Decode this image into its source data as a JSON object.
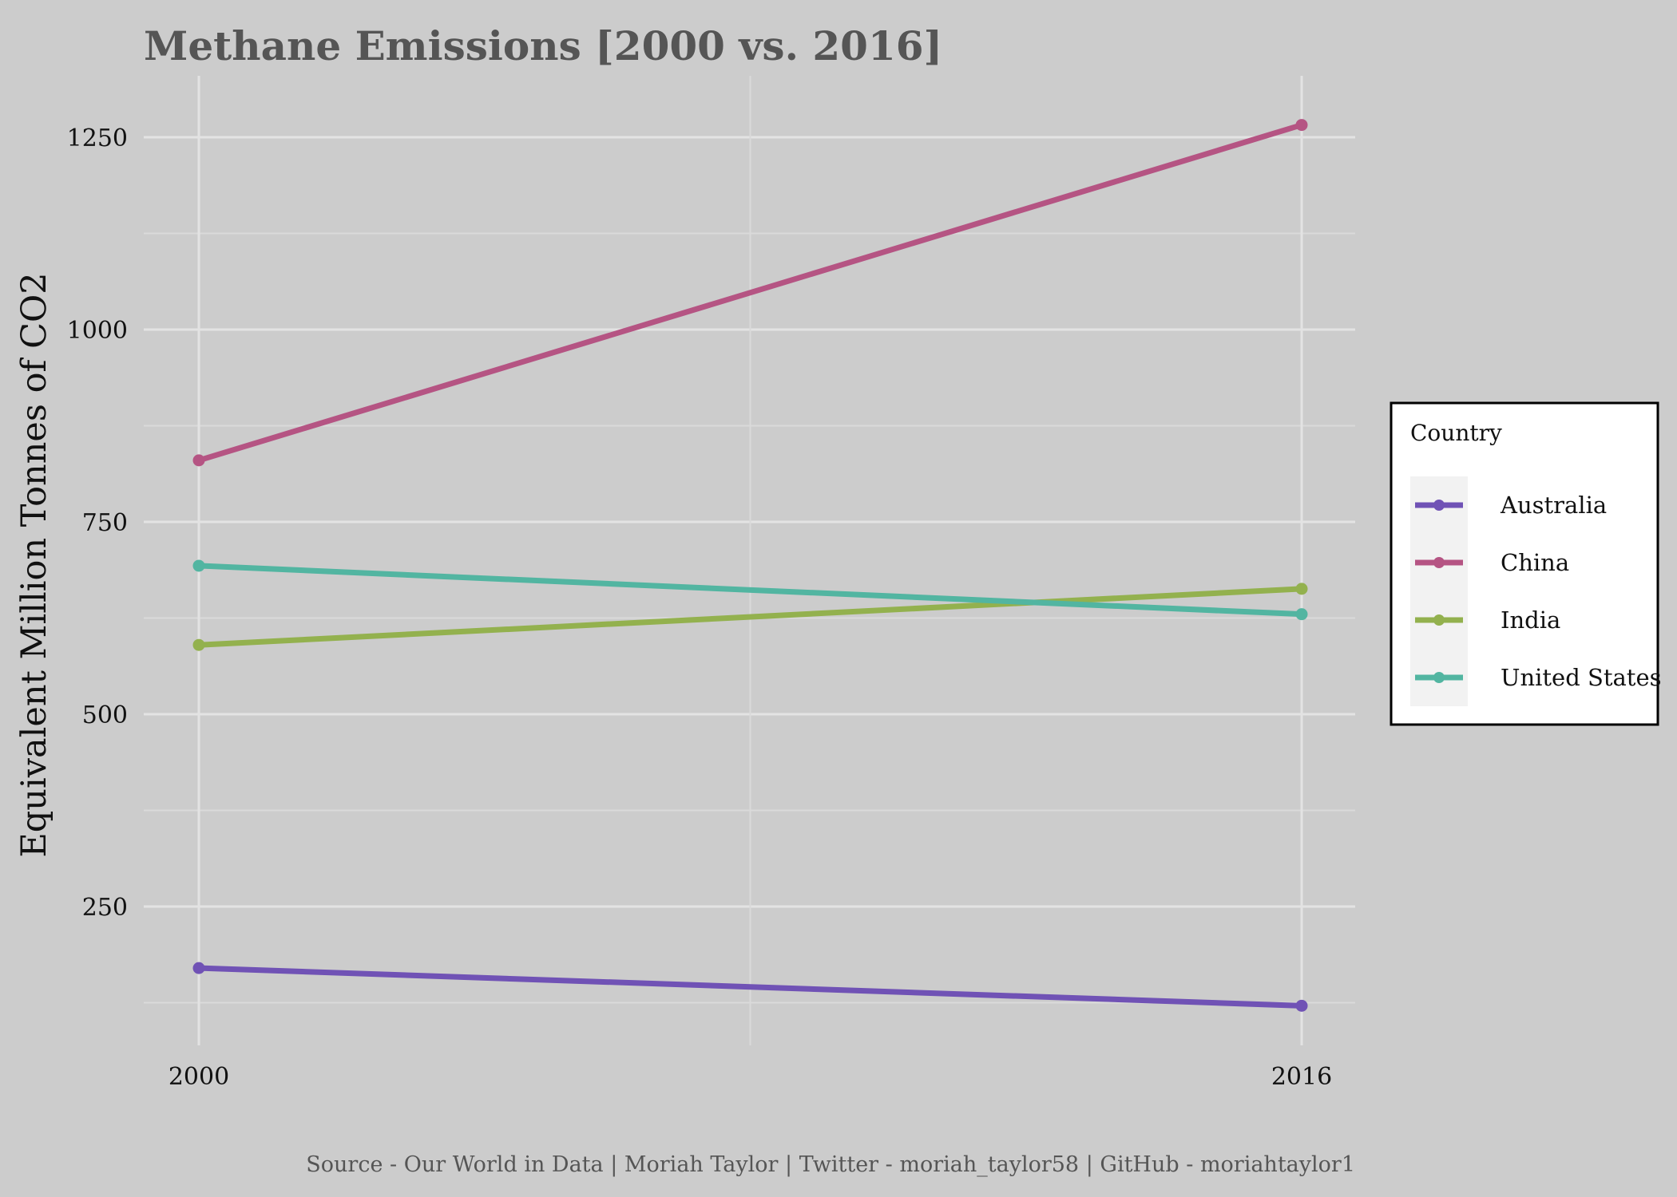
{
  "chart_data": {
    "type": "line",
    "title": "Methane Emissions [2000 vs. 2016]",
    "xlabel": "",
    "ylabel": "Equivalent Million Tonnes of CO2",
    "caption": "Source - Our World in Data | Moriah Taylor | Twitter - moriah_taylor58 | GitHub - moriahtaylor1",
    "x": [
      2000,
      2016
    ],
    "x_ticks": [
      "2000",
      "2016"
    ],
    "y_ticks": [
      250,
      500,
      750,
      1000,
      1250
    ],
    "ylim": [
      100,
      1300
    ],
    "grid": true,
    "legend": {
      "title": "Country",
      "position": "right"
    },
    "series": [
      {
        "name": "Australia",
        "color": "#7052b5",
        "values": [
          170,
          121
        ]
      },
      {
        "name": "China",
        "color": "#b55483",
        "values": [
          830,
          1266
        ]
      },
      {
        "name": "India",
        "color": "#93b14e",
        "values": [
          590,
          663
        ]
      },
      {
        "name": "United States",
        "color": "#52b5a1",
        "values": [
          693,
          630
        ]
      }
    ]
  }
}
